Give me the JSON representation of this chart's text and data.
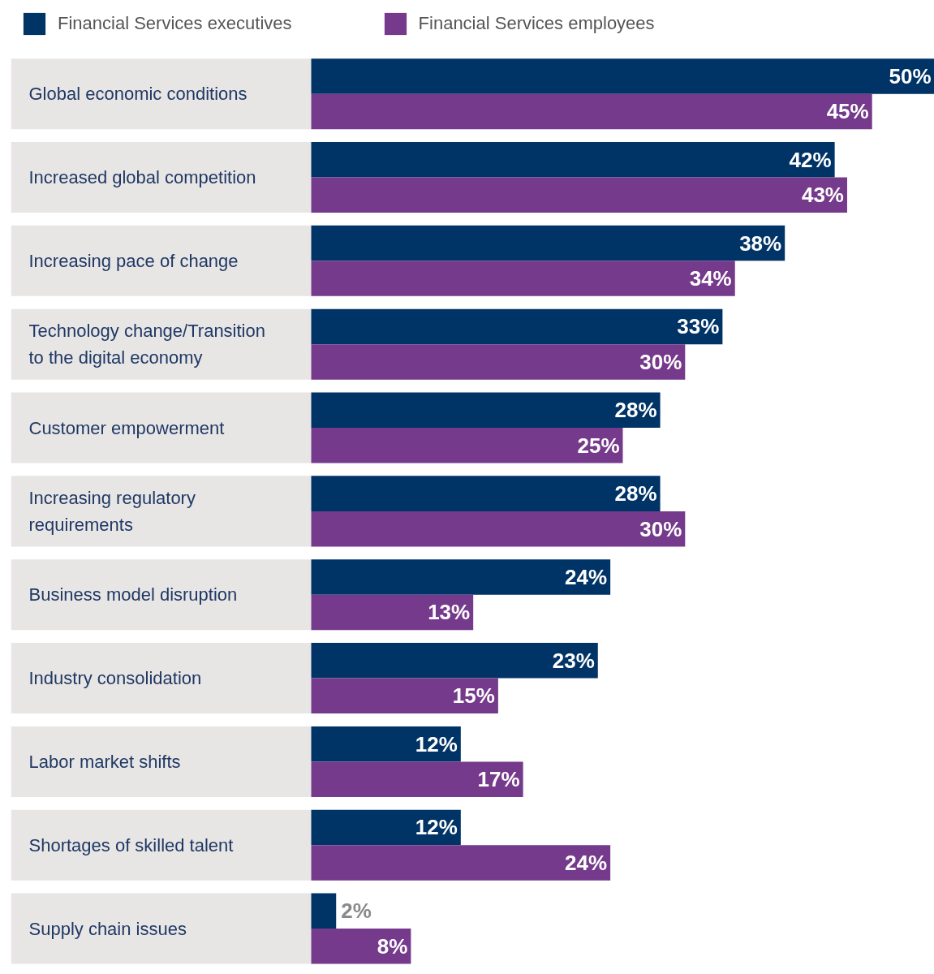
{
  "chart_data": {
    "type": "bar",
    "orientation": "horizontal",
    "legend": "top left",
    "categories": [
      "Global economic conditions",
      "Increased global competition",
      "Increasing pace of change",
      "Technology change/Transition to the digital economy",
      "Customer empowerment",
      "Increasing regulatory requirements",
      "Business model disruption",
      "Industry consolidation",
      "Labor market shifts",
      "Shortages of skilled talent",
      "Supply chain issues"
    ],
    "series": [
      {
        "name": "Financial Services executives",
        "color": "#003366",
        "values": [
          50,
          42,
          38,
          33,
          28,
          28,
          24,
          23,
          12,
          12,
          2
        ],
        "value_labels": [
          "50%",
          "42%",
          "38%",
          "33%",
          "28%",
          "28%",
          "24%",
          "23%",
          "12%",
          "12%",
          "2%"
        ]
      },
      {
        "name": "Financial Services employees",
        "color": "#753a8b",
        "values": [
          45,
          43,
          34,
          30,
          25,
          30,
          13,
          15,
          17,
          24,
          8
        ],
        "value_labels": [
          "45%",
          "43%",
          "34%",
          "30%",
          "25%",
          "30%",
          "13%",
          "15%",
          "17%",
          "24%",
          "8%"
        ]
      }
    ]
  }
}
